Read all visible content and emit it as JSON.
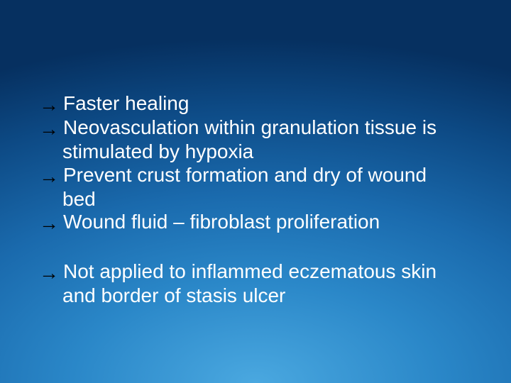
{
  "slide": {
    "background": {
      "gradient_type": "radial",
      "center_color": "#4aa8e0",
      "mid_color": "#1a6aad",
      "edge_color": "#063060"
    },
    "bullet_glyph": "→",
    "bullet_color": "#000000",
    "text_color": "#ffffff",
    "font_size_pt": 28,
    "font_family": "Arial",
    "group1": {
      "items": [
        {
          "text": "Faster healing"
        },
        {
          "text": "Neovasculation within granulation tissue is",
          "cont": "stimulated by hypoxia"
        },
        {
          "text": "Prevent crust formation and dry of wound",
          "cont": "bed"
        },
        {
          "text": "Wound fluid – fibroblast proliferation"
        }
      ]
    },
    "group2": {
      "items": [
        {
          "text": "Not applied to inflammed eczematous skin",
          "cont": "and border of stasis ulcer"
        }
      ]
    }
  }
}
